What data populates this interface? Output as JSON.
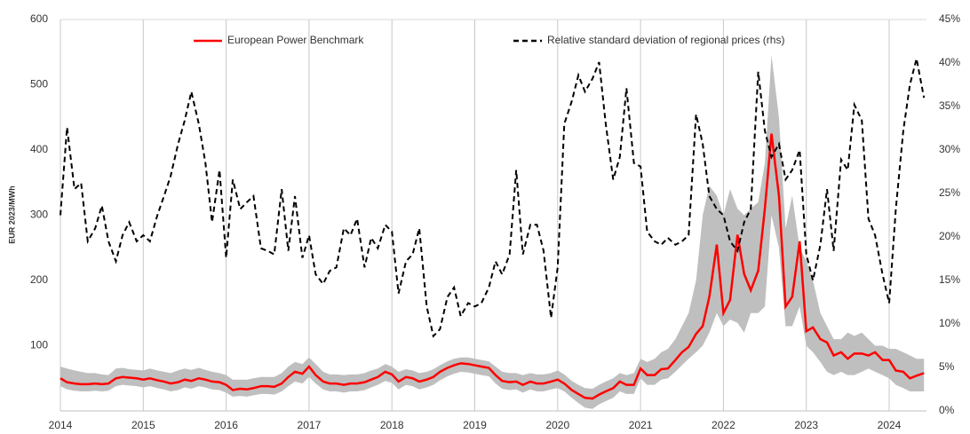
{
  "chart_data": {
    "type": "line",
    "ylabel": "EUR 2023/MWh",
    "x": [
      2014.0,
      2014.08,
      2014.17,
      2014.25,
      2014.33,
      2014.42,
      2014.5,
      2014.58,
      2014.67,
      2014.75,
      2014.83,
      2014.92,
      2015.0,
      2015.08,
      2015.17,
      2015.25,
      2015.33,
      2015.42,
      2015.5,
      2015.58,
      2015.67,
      2015.75,
      2015.83,
      2015.92,
      2016.0,
      2016.08,
      2016.17,
      2016.25,
      2016.33,
      2016.42,
      2016.5,
      2016.58,
      2016.67,
      2016.75,
      2016.83,
      2016.92,
      2017.0,
      2017.08,
      2017.17,
      2017.25,
      2017.33,
      2017.42,
      2017.5,
      2017.58,
      2017.67,
      2017.75,
      2017.83,
      2017.92,
      2018.0,
      2018.08,
      2018.17,
      2018.25,
      2018.33,
      2018.42,
      2018.5,
      2018.58,
      2018.67,
      2018.75,
      2018.83,
      2018.92,
      2019.0,
      2019.08,
      2019.17,
      2019.25,
      2019.33,
      2019.42,
      2019.5,
      2019.58,
      2019.67,
      2019.75,
      2019.83,
      2019.92,
      2020.0,
      2020.08,
      2020.17,
      2020.25,
      2020.33,
      2020.42,
      2020.5,
      2020.58,
      2020.67,
      2020.75,
      2020.83,
      2020.92,
      2021.0,
      2021.08,
      2021.17,
      2021.25,
      2021.33,
      2021.42,
      2021.5,
      2021.58,
      2021.67,
      2021.75,
      2021.83,
      2021.92,
      2022.0,
      2022.08,
      2022.17,
      2022.25,
      2022.33,
      2022.42,
      2022.5,
      2022.58,
      2022.67,
      2022.75,
      2022.83,
      2022.92,
      2023.0,
      2023.08,
      2023.17,
      2023.25,
      2023.33,
      2023.42,
      2023.5,
      2023.58,
      2023.67,
      2023.75,
      2023.83,
      2023.92,
      2024.0,
      2024.08,
      2024.17,
      2024.25,
      2024.33,
      2024.42
    ],
    "xlim": [
      2014,
      2024.45
    ],
    "xticks": [
      2014,
      2015,
      2016,
      2017,
      2018,
      2019,
      2020,
      2021,
      2022,
      2023,
      2024
    ],
    "ylim": [
      0,
      600
    ],
    "yticks": [
      100,
      200,
      300,
      400,
      500,
      600
    ],
    "y2lim": [
      0,
      45
    ],
    "y2ticks": [
      {
        "value": 0,
        "label": "0%"
      },
      {
        "value": 5,
        "label": "5%"
      },
      {
        "value": 10,
        "label": "10%"
      },
      {
        "value": 15,
        "label": "15%"
      },
      {
        "value": 20,
        "label": "20%"
      },
      {
        "value": 25,
        "label": "25%"
      },
      {
        "value": 30,
        "label": "30%"
      },
      {
        "value": 35,
        "label": "35%"
      },
      {
        "value": 40,
        "label": "40%"
      },
      {
        "value": 45,
        "label": "45%"
      }
    ],
    "grid": "x",
    "band": {
      "color": "#bfbfbf",
      "high": [
        68,
        65,
        62,
        60,
        58,
        58,
        56,
        55,
        65,
        66,
        64,
        63,
        62,
        65,
        62,
        60,
        58,
        62,
        65,
        63,
        66,
        63,
        60,
        58,
        55,
        48,
        48,
        48,
        50,
        52,
        52,
        52,
        58,
        68,
        75,
        72,
        82,
        72,
        60,
        56,
        56,
        55,
        56,
        56,
        58,
        62,
        65,
        72,
        68,
        60,
        64,
        62,
        58,
        60,
        64,
        70,
        76,
        80,
        82,
        82,
        80,
        78,
        76,
        68,
        60,
        58,
        58,
        55,
        58,
        56,
        56,
        58,
        62,
        56,
        46,
        40,
        35,
        34,
        40,
        45,
        50,
        58,
        55,
        58,
        80,
        75,
        80,
        90,
        95,
        110,
        130,
        150,
        200,
        300,
        345,
        330,
        300,
        340,
        310,
        300,
        310,
        320,
        380,
        545,
        450,
        280,
        330,
        250,
        230,
        200,
        150,
        130,
        110,
        110,
        120,
        115,
        120,
        110,
        100,
        100,
        95,
        95,
        90,
        85,
        80,
        80
      ],
      "low": [
        38,
        33,
        31,
        30,
        30,
        31,
        30,
        31,
        38,
        40,
        39,
        38,
        36,
        38,
        35,
        33,
        30,
        32,
        36,
        34,
        38,
        36,
        33,
        32,
        28,
        22,
        23,
        22,
        24,
        26,
        26,
        25,
        30,
        38,
        45,
        42,
        52,
        42,
        33,
        30,
        30,
        28,
        30,
        30,
        32,
        36,
        40,
        46,
        43,
        33,
        40,
        38,
        33,
        36,
        40,
        47,
        53,
        57,
        60,
        59,
        57,
        55,
        53,
        42,
        34,
        32,
        33,
        28,
        33,
        30,
        30,
        33,
        35,
        30,
        20,
        12,
        5,
        3,
        10,
        15,
        20,
        30,
        26,
        26,
        50,
        40,
        40,
        48,
        50,
        60,
        70,
        80,
        90,
        100,
        120,
        150,
        130,
        140,
        135,
        120,
        150,
        150,
        160,
        300,
        250,
        130,
        130,
        160,
        100,
        90,
        75,
        60,
        55,
        60,
        55,
        55,
        60,
        65,
        60,
        55,
        50,
        40,
        35,
        30,
        30,
        30
      ]
    },
    "series": [
      {
        "name": "European Power Benchmark",
        "color": "#ff0000",
        "values": [
          50,
          44,
          42,
          41,
          41,
          42,
          41,
          42,
          50,
          52,
          51,
          50,
          48,
          50,
          47,
          45,
          42,
          44,
          48,
          46,
          50,
          48,
          45,
          44,
          40,
          32,
          34,
          33,
          35,
          38,
          38,
          37,
          42,
          52,
          60,
          57,
          68,
          55,
          45,
          42,
          42,
          40,
          42,
          42,
          44,
          48,
          52,
          60,
          56,
          45,
          52,
          50,
          45,
          48,
          52,
          60,
          66,
          70,
          73,
          72,
          70,
          68,
          66,
          55,
          46,
          44,
          45,
          40,
          45,
          42,
          42,
          45,
          48,
          42,
          32,
          26,
          20,
          19,
          25,
          30,
          35,
          45,
          40,
          40,
          65,
          55,
          55,
          64,
          65,
          78,
          90,
          98,
          118,
          130,
          175,
          255,
          150,
          170,
          270,
          210,
          185,
          215,
          310,
          425,
          330,
          160,
          175,
          260,
          122,
          128,
          110,
          105,
          85,
          90,
          80,
          88,
          88,
          85,
          90,
          78,
          78,
          62,
          60,
          50,
          54,
          58
        ]
      },
      {
        "name": "Relative standard deviation of regional prices (rhs)",
        "color": "#000000",
        "axis": "y2",
        "dashed": true,
        "values": [
          22.5,
          32.6,
          25.5,
          26.2,
          19.5,
          21,
          23.6,
          19.5,
          17.2,
          20.2,
          21.7,
          19.5,
          20.2,
          19.5,
          22.5,
          24.7,
          27,
          30.7,
          33.4,
          36.7,
          33,
          28.5,
          21.7,
          27.7,
          17.6,
          26.6,
          23.2,
          24,
          24.7,
          18.7,
          18.4,
          18,
          25.5,
          18.4,
          24.7,
          17.6,
          20.2,
          15.7,
          14.6,
          16.1,
          16.5,
          21,
          20.2,
          22.1,
          16.5,
          19.9,
          18.7,
          21.4,
          20.6,
          13.5,
          17.2,
          18,
          21,
          12,
          8.6,
          9.4,
          13.1,
          14.2,
          10.9,
          12.4,
          12,
          12.4,
          14.2,
          17.2,
          15.7,
          18,
          27.7,
          18,
          21.4,
          21.4,
          18.4,
          10.7,
          16.5,
          33,
          35.6,
          38.6,
          36.7,
          38.2,
          40.1,
          33,
          26.6,
          29.2,
          37.1,
          28.5,
          28.1,
          20.6,
          19.5,
          19.1,
          19.9,
          19.1,
          19.5,
          20.2,
          34.1,
          30.7,
          24.7,
          23.2,
          22.5,
          19.5,
          18.4,
          21.7,
          23.2,
          39,
          32.2,
          29.2,
          30.7,
          26.6,
          27.7,
          30,
          18,
          15,
          19.1,
          25.5,
          18.4,
          28.9,
          27.7,
          35.2,
          33.4,
          22.1,
          20.2,
          15.7,
          12.4,
          23.2,
          32.2,
          37.5,
          40.5,
          36
        ]
      }
    ]
  }
}
